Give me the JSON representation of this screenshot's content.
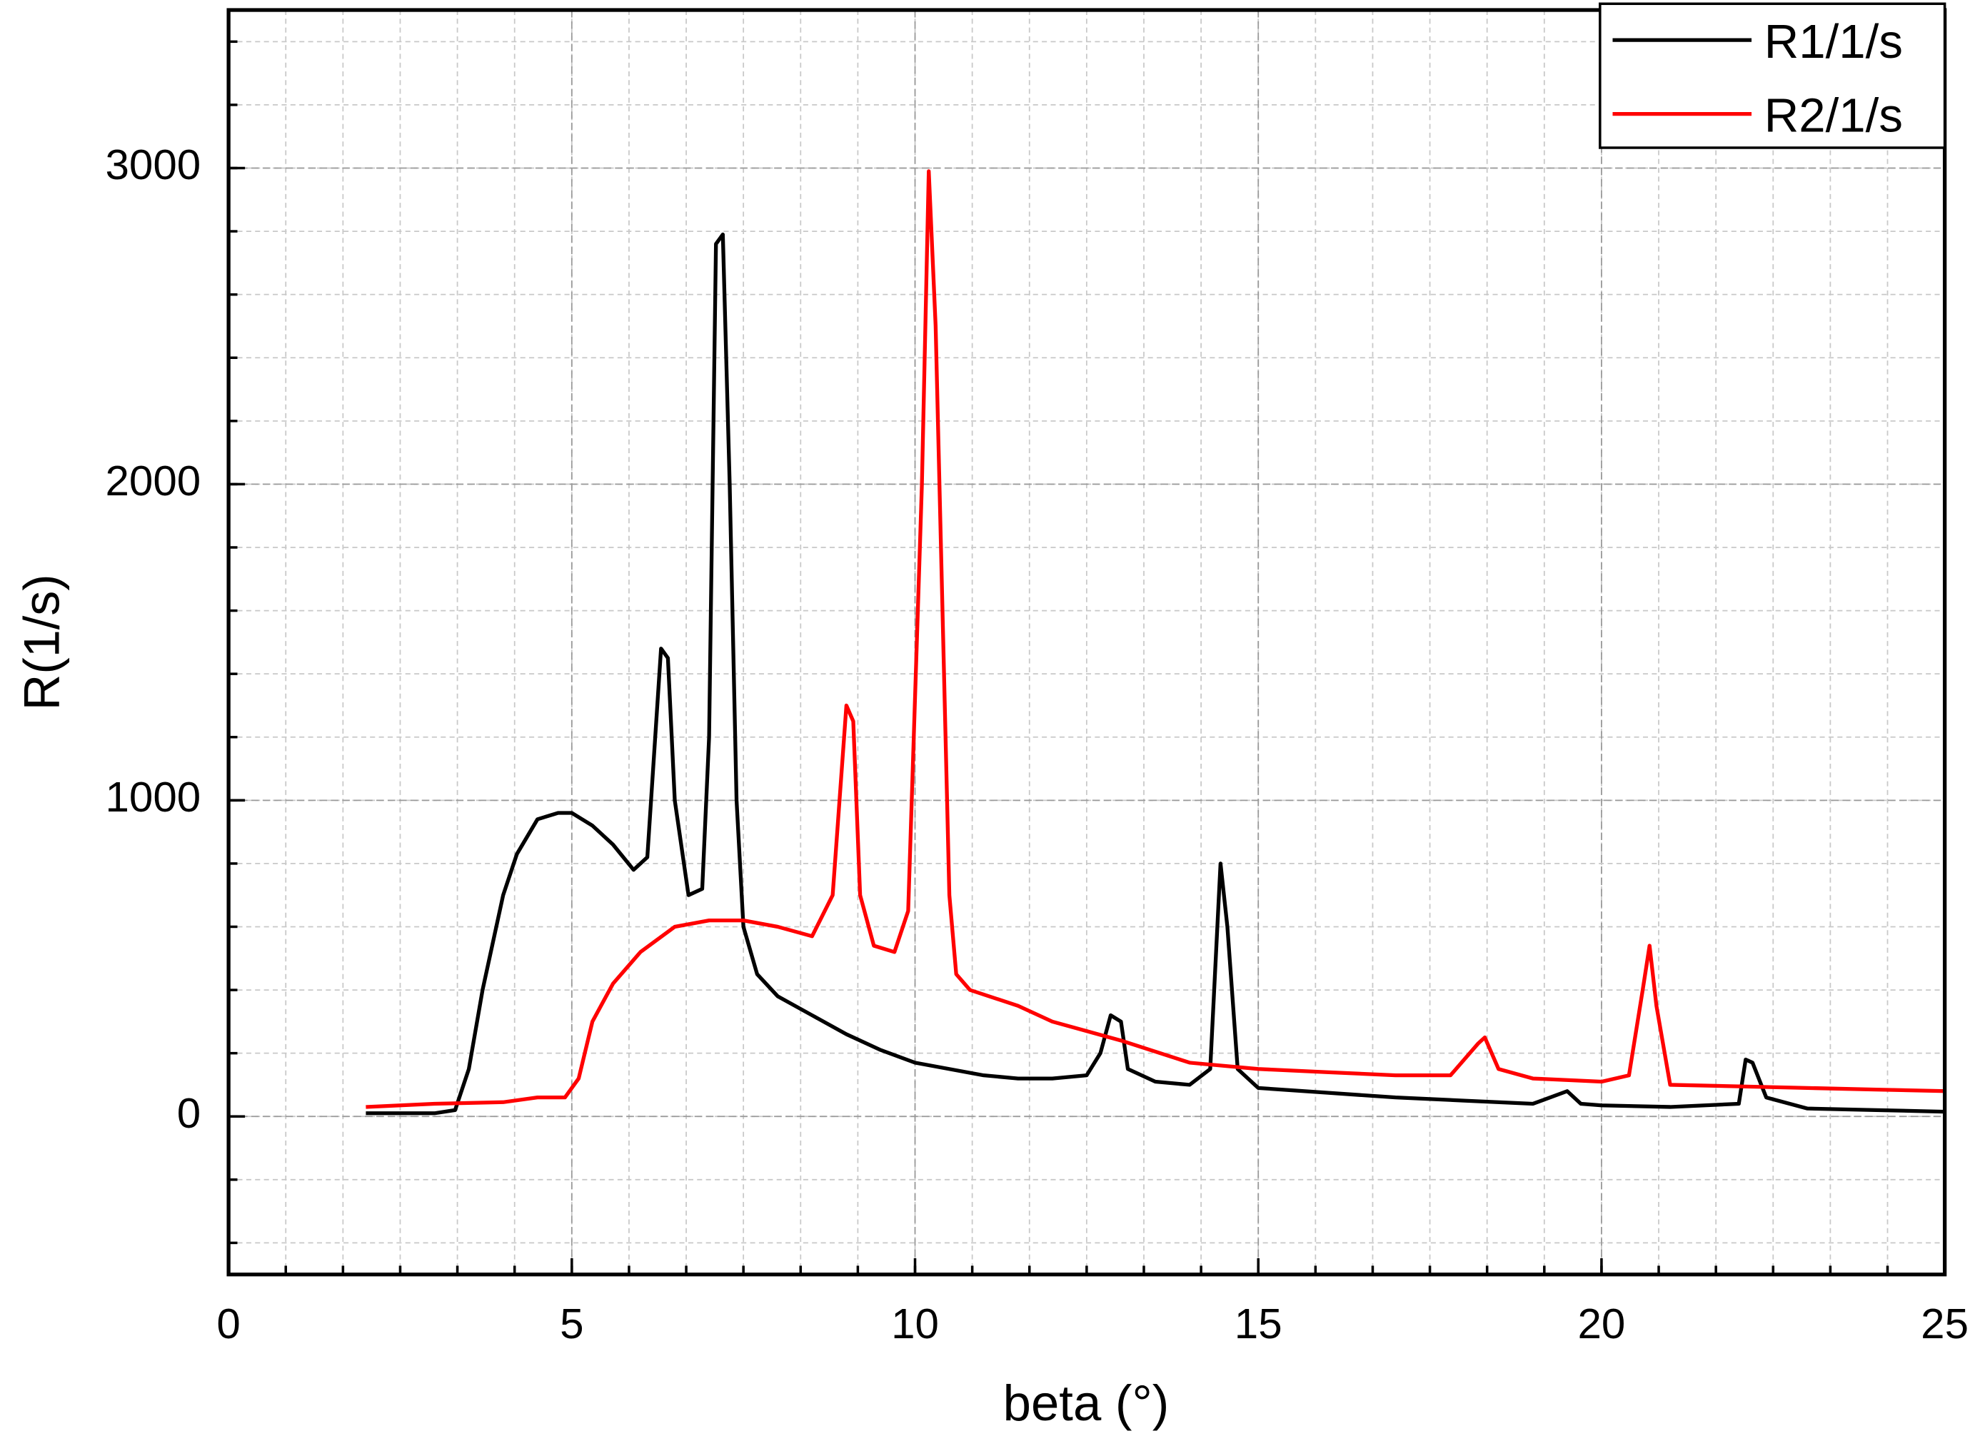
{
  "chart_data": {
    "type": "line",
    "x_label": "beta (°)",
    "y_label": "R(1/s)",
    "xlim": [
      0,
      25
    ],
    "ylim": [
      -500,
      3500
    ],
    "xticks": [
      0,
      5,
      10,
      15,
      20,
      25
    ],
    "yticks": [
      0,
      1000,
      2000,
      3000
    ],
    "x_minor_divisions": 6,
    "y_minor_divisions": 5,
    "grid": true,
    "legend": "upper right",
    "series": [
      {
        "name": "R1/1/s",
        "color": "#000000",
        "x": [
          2,
          3,
          3.3,
          3.5,
          3.7,
          4,
          4.2,
          4.5,
          4.8,
          5,
          5.3,
          5.6,
          5.9,
          6.1,
          6.3,
          6.4,
          6.5,
          6.7,
          6.9,
          7.0,
          7.1,
          7.2,
          7.3,
          7.4,
          7.5,
          7.7,
          8,
          8.5,
          9,
          9.5,
          10,
          10.5,
          11,
          11.5,
          12,
          12.5,
          12.7,
          12.85,
          13,
          13.1,
          13.5,
          14,
          14.3,
          14.45,
          14.55,
          14.7,
          15,
          16,
          17,
          18,
          19,
          19.5,
          19.7,
          20,
          21,
          22,
          22.1,
          22.2,
          22.4,
          23,
          24,
          25
        ],
        "values": [
          10,
          10,
          20,
          150,
          400,
          700,
          830,
          940,
          960,
          960,
          920,
          860,
          780,
          820,
          1480,
          1450,
          1000,
          700,
          720,
          1200,
          2760,
          2790,
          2000,
          1000,
          600,
          450,
          380,
          320,
          260,
          210,
          170,
          150,
          130,
          120,
          120,
          130,
          200,
          320,
          300,
          150,
          110,
          100,
          150,
          800,
          600,
          150,
          90,
          75,
          60,
          50,
          40,
          80,
          40,
          35,
          30,
          40,
          180,
          170,
          60,
          25,
          20,
          15
        ]
      },
      {
        "name": "R2/1/s",
        "color": "#ff0000",
        "x": [
          2,
          3,
          4,
          4.5,
          4.9,
          5.1,
          5.3,
          5.6,
          6,
          6.5,
          7,
          7.5,
          8,
          8.5,
          8.8,
          9,
          9.1,
          9.2,
          9.4,
          9.7,
          9.9,
          10.1,
          10.2,
          10.3,
          10.5,
          10.6,
          10.8,
          11.5,
          12,
          13,
          14,
          15,
          16,
          17,
          17.8,
          18.2,
          18.3,
          18.5,
          19,
          20,
          20.4,
          20.6,
          20.7,
          20.8,
          21,
          22,
          23,
          24,
          25
        ],
        "values": [
          30,
          40,
          45,
          60,
          60,
          120,
          300,
          420,
          520,
          600,
          620,
          620,
          600,
          570,
          700,
          1300,
          1250,
          700,
          540,
          520,
          650,
          2000,
          2990,
          2500,
          700,
          450,
          400,
          350,
          300,
          240,
          170,
          150,
          140,
          130,
          130,
          230,
          250,
          150,
          120,
          110,
          130,
          400,
          540,
          350,
          100,
          95,
          90,
          85,
          80
        ]
      }
    ]
  }
}
